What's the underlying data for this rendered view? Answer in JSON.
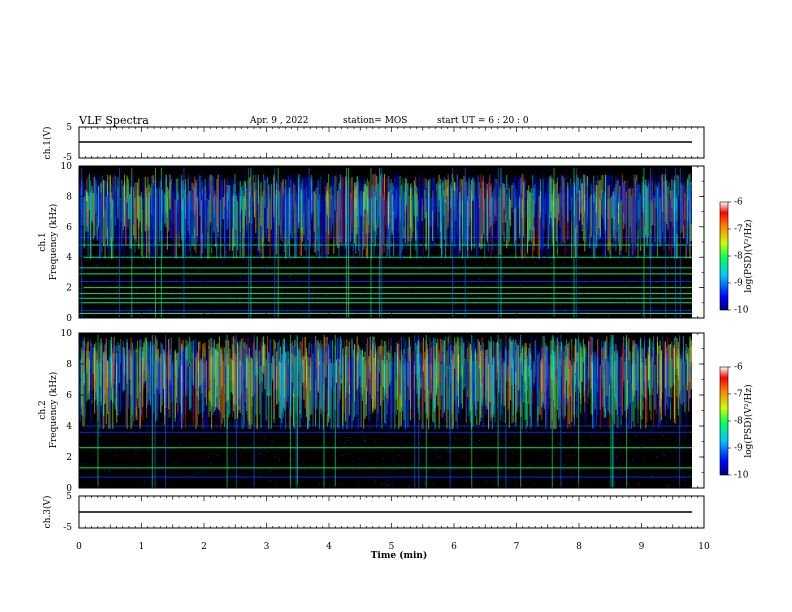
{
  "header": {
    "title": "VLF Spectra",
    "date": "Apr. 9 , 2022",
    "station": "station= MOS",
    "start": "start UT =  6 : 20 : 0"
  },
  "colors": {
    "background": "#000000",
    "trace": "#000000"
  },
  "chart_data": [
    {
      "id": "ch1-waveform",
      "type": "line",
      "ylabel": "ch.1(V)",
      "ylim": [
        -5,
        5
      ],
      "yticks": [
        "5",
        "-5"
      ],
      "xlim": [
        0,
        10
      ],
      "series": [
        {
          "x": [
            0,
            9.8
          ],
          "y": [
            0,
            0
          ]
        }
      ]
    },
    {
      "id": "ch1-spectrogram",
      "type": "heatmap",
      "ylabel": "ch.1",
      "ylabel2": "Frequency (kHz)",
      "ylim": [
        0,
        10
      ],
      "yticks": [
        "0",
        "2",
        "4",
        "6",
        "8",
        "10"
      ],
      "xlim": [
        0,
        10
      ],
      "band_khz": [
        4.3,
        9.5
      ],
      "horizontal_lines_khz": [
        0.3,
        0.5,
        1.0,
        1.3,
        1.6,
        2.0,
        2.4,
        2.9,
        3.3,
        4.0,
        4.8,
        5.3
      ],
      "colorbar": {
        "label": "log(PSD)(V²/Hz)",
        "ticks": [
          "-6",
          "-7",
          "-8",
          "-9",
          "-10"
        ],
        "range": [
          -10,
          -6
        ]
      }
    },
    {
      "id": "ch2-spectrogram",
      "type": "heatmap",
      "ylabel": "ch.2",
      "ylabel2": "Frequency (kHz)",
      "ylim": [
        0,
        10
      ],
      "yticks": [
        "0",
        "2",
        "4",
        "6",
        "8",
        "10"
      ],
      "xlim": [
        0,
        10
      ],
      "band_khz": [
        4.2,
        9.8
      ],
      "horizontal_lines_khz": [
        0.7,
        1.3,
        2.6,
        3.6,
        4.0
      ],
      "colorbar": {
        "label": "log(PSD)(V²/Hz)",
        "ticks": [
          "-6",
          "-7",
          "-8",
          "-9",
          "-10"
        ],
        "range": [
          -10,
          -6
        ]
      }
    },
    {
      "id": "ch3-waveform",
      "type": "line",
      "ylabel": "ch.3(V)",
      "ylim": [
        -5,
        5
      ],
      "yticks": [
        "5",
        "-5"
      ],
      "xlim": [
        0,
        10
      ],
      "series": [
        {
          "x": [
            0,
            9.8
          ],
          "y": [
            0,
            0
          ]
        }
      ]
    }
  ],
  "xaxis": {
    "label": "Time  (min)",
    "range": [
      0,
      10
    ],
    "ticks": [
      "0",
      "1",
      "2",
      "3",
      "4",
      "5",
      "6",
      "7",
      "8",
      "9",
      "10"
    ]
  }
}
